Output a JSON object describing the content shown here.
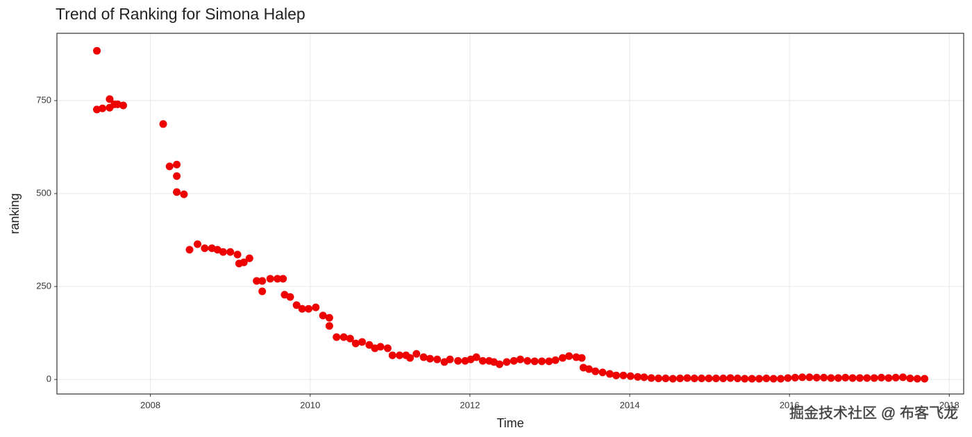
{
  "chart_data": {
    "type": "scatter",
    "title": "Trend of Ranking for Simona Halep",
    "x_label": "Time",
    "y_label": "ranking",
    "watermark": "掘金技术社区 @ 布客飞龙",
    "color": "#ee0000",
    "grid": true,
    "xlim": [
      2006.83,
      2018.18
    ],
    "ylim": [
      -39,
      931
    ],
    "xticks": [
      2008,
      2010,
      2012,
      2014,
      2016,
      2018
    ],
    "yticks": [
      0,
      250,
      500,
      750
    ],
    "x": [
      2007.33,
      2007.33,
      2007.4,
      2007.49,
      2007.49,
      2007.55,
      2007.59,
      2007.66,
      2008.16,
      2008.24,
      2008.33,
      2008.33,
      2008.33,
      2008.42,
      2008.49,
      2008.59,
      2008.68,
      2008.77,
      2008.84,
      2008.91,
      2009.0,
      2009.09,
      2009.11,
      2009.17,
      2009.24,
      2009.33,
      2009.4,
      2009.4,
      2009.5,
      2009.59,
      2009.66,
      2009.68,
      2009.75,
      2009.83,
      2009.9,
      2009.98,
      2010.07,
      2010.16,
      2010.24,
      2010.24,
      2010.33,
      2010.42,
      2010.5,
      2010.57,
      2010.65,
      2010.74,
      2010.81,
      2010.88,
      2010.97,
      2011.03,
      2011.12,
      2011.2,
      2011.25,
      2011.33,
      2011.42,
      2011.5,
      2011.59,
      2011.68,
      2011.75,
      2011.85,
      2011.94,
      2012.01,
      2012.08,
      2012.16,
      2012.24,
      2012.3,
      2012.37,
      2012.46,
      2012.55,
      2012.63,
      2012.72,
      2012.81,
      2012.9,
      2012.99,
      2013.07,
      2013.16,
      2013.24,
      2013.33,
      2013.4,
      2013.42,
      2013.49,
      2013.57,
      2013.66,
      2013.75,
      2013.83,
      2013.92,
      2014.01,
      2014.1,
      2014.18,
      2014.27,
      2014.36,
      2014.45,
      2014.54,
      2014.63,
      2014.72,
      2014.81,
      2014.9,
      2014.99,
      2015.08,
      2015.17,
      2015.26,
      2015.35,
      2015.44,
      2015.53,
      2015.62,
      2015.71,
      2015.8,
      2015.89,
      2015.98,
      2016.07,
      2016.16,
      2016.25,
      2016.34,
      2016.43,
      2016.52,
      2016.61,
      2016.7,
      2016.79,
      2016.88,
      2016.97,
      2017.06,
      2017.15,
      2017.24,
      2017.33,
      2017.42,
      2017.51,
      2017.6,
      2017.69
    ],
    "values": [
      884,
      726,
      729,
      754,
      731,
      740,
      740,
      737,
      687,
      573,
      578,
      547,
      504,
      498,
      349,
      364,
      353,
      353,
      349,
      343,
      343,
      336,
      312,
      315,
      326,
      265,
      237,
      265,
      271,
      271,
      271,
      228,
      222,
      200,
      190,
      190,
      194,
      172,
      166,
      144,
      114,
      114,
      110,
      97,
      101,
      93,
      84,
      88,
      84,
      65,
      65,
      65,
      58,
      69,
      60,
      56,
      54,
      47,
      54,
      50,
      50,
      54,
      60,
      50,
      50,
      47,
      41,
      47,
      50,
      54,
      50,
      49,
      49,
      49,
      52,
      58,
      63,
      60,
      58,
      32,
      28,
      22,
      19,
      15,
      11,
      11,
      9,
      7,
      6,
      4,
      3,
      3,
      2,
      3,
      4,
      3,
      3,
      3,
      3,
      3,
      4,
      3,
      2,
      2,
      2,
      3,
      2,
      2,
      4,
      5,
      6,
      6,
      5,
      5,
      4,
      4,
      5,
      4,
      4,
      4,
      4,
      5,
      4,
      5,
      6,
      3,
      2,
      2
    ]
  }
}
